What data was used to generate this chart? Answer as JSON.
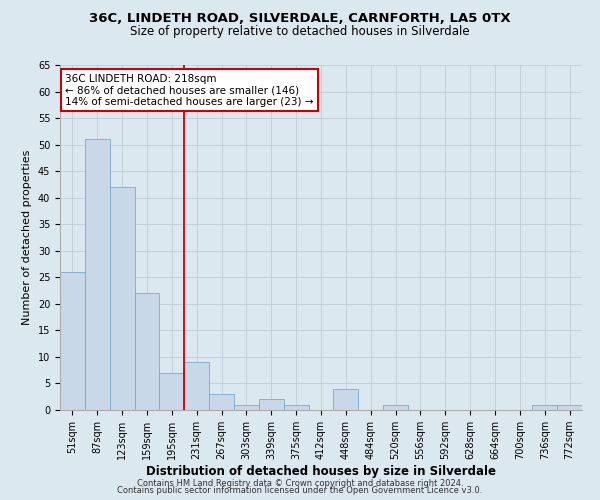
{
  "title1": "36C, LINDETH ROAD, SILVERDALE, CARNFORTH, LA5 0TX",
  "title2": "Size of property relative to detached houses in Silverdale",
  "xlabel": "Distribution of detached houses by size in Silverdale",
  "ylabel": "Number of detached properties",
  "categories": [
    "51sqm",
    "87sqm",
    "123sqm",
    "159sqm",
    "195sqm",
    "231sqm",
    "267sqm",
    "303sqm",
    "339sqm",
    "375sqm",
    "412sqm",
    "448sqm",
    "484sqm",
    "520sqm",
    "556sqm",
    "592sqm",
    "628sqm",
    "664sqm",
    "700sqm",
    "736sqm",
    "772sqm"
  ],
  "values": [
    26,
    51,
    42,
    22,
    7,
    9,
    3,
    1,
    2,
    1,
    0,
    4,
    0,
    1,
    0,
    0,
    0,
    0,
    0,
    1,
    1
  ],
  "bar_color": "#c8d8e8",
  "bar_edge_color": "#7aaac8",
  "bar_width": 1.0,
  "red_line_x": 4.5,
  "red_line_color": "#cc0000",
  "annotation_text_line1": "36C LINDETH ROAD: 218sqm",
  "annotation_text_line2": "← 86% of detached houses are smaller (146)",
  "annotation_text_line3": "14% of semi-detached houses are larger (23) →",
  "annotation_box_color": "white",
  "annotation_box_edge": "#cc0000",
  "ylim": [
    0,
    65
  ],
  "yticks": [
    0,
    5,
    10,
    15,
    20,
    25,
    30,
    35,
    40,
    45,
    50,
    55,
    60,
    65
  ],
  "grid_color": "#c0ccd8",
  "background_color": "#dce8f0",
  "footer1": "Contains HM Land Registry data © Crown copyright and database right 2024.",
  "footer2": "Contains public sector information licensed under the Open Government Licence v3.0.",
  "title_fontsize": 9.5,
  "subtitle_fontsize": 8.5,
  "tick_fontsize": 7,
  "ylabel_fontsize": 8,
  "xlabel_fontsize": 8.5,
  "annotation_fontsize": 7.5,
  "footer_fontsize": 6.0
}
